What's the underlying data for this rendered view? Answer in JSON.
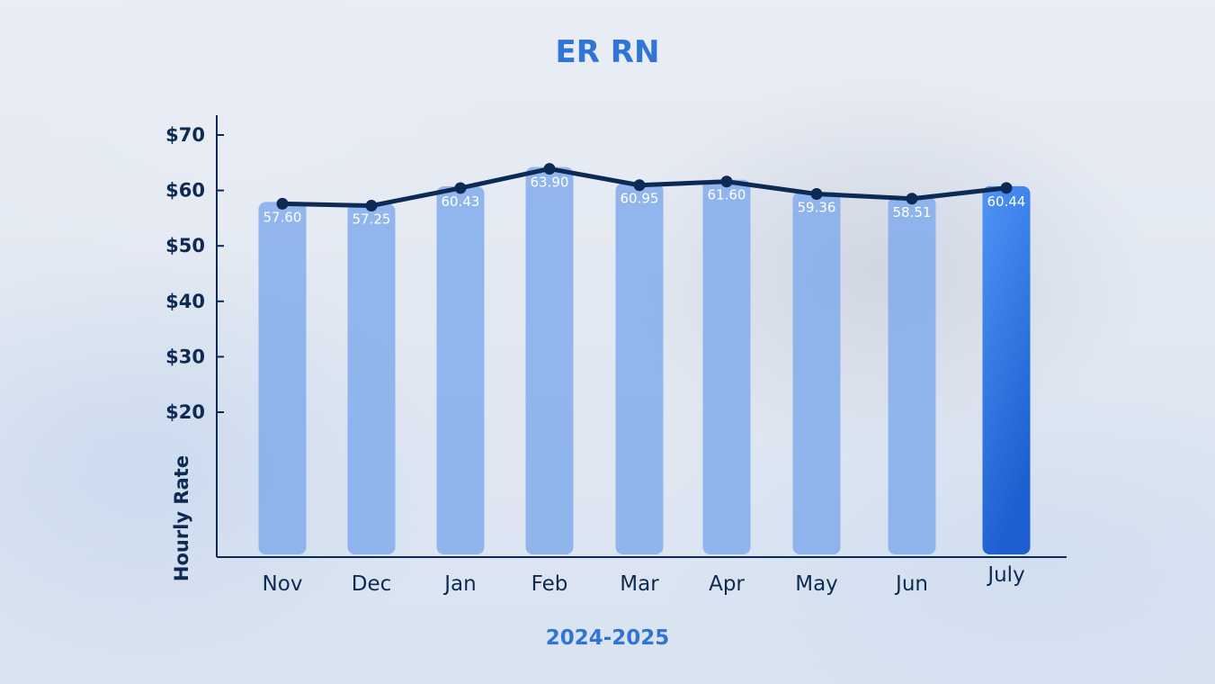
{
  "chart_data": {
    "type": "bar",
    "title": "ER RN",
    "xlabel": "2024-2025",
    "ylabel": "Hourly Rate",
    "categories": [
      "Nov",
      "Dec",
      "Jan",
      "Feb",
      "Mar",
      "Apr",
      "May",
      "Jun",
      "July"
    ],
    "series": [
      {
        "values": [
          57.6,
          57.25,
          60.43,
          63.9,
          60.95,
          61.6,
          59.36,
          58.51,
          60.44
        ]
      }
    ],
    "data_labels": [
      "57.60",
      "57.25",
      "60.43",
      "63.90",
      "60.95",
      "61.60",
      "59.36",
      "58.51",
      "60.44"
    ],
    "line_overlay": {
      "values": [
        57.6,
        57.25,
        60.43,
        63.9,
        60.95,
        61.6,
        59.36,
        58.51,
        60.44
      ]
    },
    "y_ticks": [
      20,
      30,
      40,
      50,
      60,
      70
    ],
    "y_tick_labels": [
      "$20",
      "$30",
      "$40",
      "$50",
      "$60",
      "$70"
    ],
    "ylim": [
      0,
      72
    ],
    "grid": false,
    "highlighted_category": "July",
    "colors": {
      "bar": "#7fa9ec",
      "bar_highlight_top": "#4a90f5",
      "bar_highlight_bottom": "#1f62d0",
      "line": "#0d2a55",
      "title": "#2f74d6",
      "axis_text": "#0e2a52",
      "data_label": "#ffffff"
    }
  }
}
